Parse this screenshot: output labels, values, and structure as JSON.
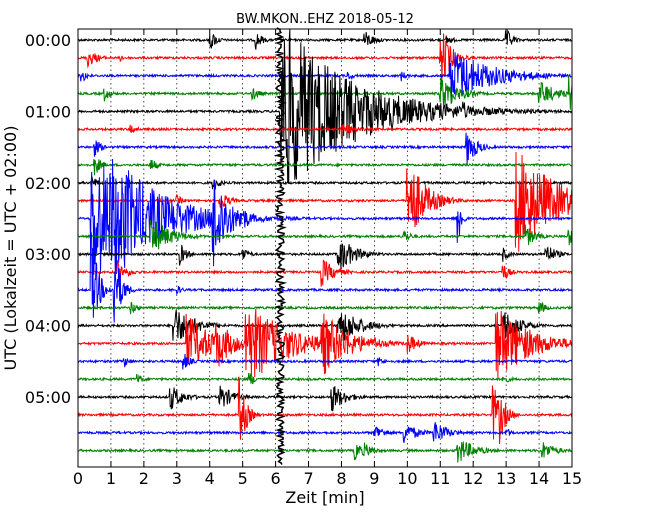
{
  "chart_data": {
    "type": "line",
    "title": "BW.MKON..EHZ 2018-05-12",
    "xlabel": "Zeit  [min]",
    "ylabel": "UTC (Lokalzeit = UTC + 02:00)",
    "xlim": [
      0,
      15
    ],
    "x_ticks": [
      "0",
      "1",
      "2",
      "3",
      "4",
      "5",
      "6",
      "7",
      "8",
      "9",
      "10",
      "11",
      "12",
      "13",
      "14",
      "15"
    ],
    "y_ticks": [
      "00:00",
      "01:00",
      "02:00",
      "03:00",
      "04:00",
      "05:00"
    ],
    "grid": "vertical-dotted",
    "line_interval_min": 15,
    "trace_colors": [
      "#000000",
      "#ff0000",
      "#0000ff",
      "#008000"
    ],
    "series": [
      {
        "start": "00:00",
        "color": "#000000",
        "events": [
          {
            "t": 4.0,
            "a": 12,
            "d": 0.2
          },
          {
            "t": 5.4,
            "a": 10,
            "d": 0.2
          },
          {
            "t": 8.7,
            "a": 10,
            "d": 0.3
          },
          {
            "t": 13.0,
            "a": 12,
            "d": 0.2
          },
          {
            "t": 11.2,
            "a": 6,
            "d": 0.2
          }
        ]
      },
      {
        "start": "00:15",
        "color": "#ff0000",
        "events": [
          {
            "t": 0.3,
            "a": 10,
            "d": 0.3
          },
          {
            "t": 11.0,
            "a": 35,
            "d": 0.3
          },
          {
            "t": 1.3,
            "a": 4,
            "d": 0.1
          }
        ]
      },
      {
        "start": "00:30",
        "color": "#0000ff",
        "events": [
          {
            "t": 11.3,
            "a": 30,
            "d": 1.2
          },
          {
            "t": 0.1,
            "a": 8,
            "d": 0.2
          },
          {
            "t": 9.8,
            "a": 6,
            "d": 0.2
          },
          {
            "t": 8.2,
            "a": 5,
            "d": 0.2
          }
        ]
      },
      {
        "start": "00:45",
        "color": "#008000",
        "events": [
          {
            "t": 11.0,
            "a": 20,
            "d": 0.5
          },
          {
            "t": 14.0,
            "a": 14,
            "d": 0.5
          },
          {
            "t": 14.9,
            "a": 20,
            "d": 0.3
          },
          {
            "t": 0.8,
            "a": 8,
            "d": 0.2
          },
          {
            "t": 5.3,
            "a": 8,
            "d": 0.2
          }
        ]
      },
      {
        "start": "01:00",
        "color": "#000000",
        "events": [
          {
            "t": 6.15,
            "a": 95,
            "d": 2.0
          },
          {
            "t": 11.7,
            "a": 10,
            "d": 0.3
          }
        ]
      },
      {
        "start": "01:15",
        "color": "#ff0000",
        "events": [
          {
            "t": 1.6,
            "a": 6,
            "d": 0.2
          },
          {
            "t": 8.0,
            "a": 8,
            "d": 0.4
          }
        ]
      },
      {
        "start": "01:30",
        "color": "#0000ff",
        "events": [
          {
            "t": 11.8,
            "a": 20,
            "d": 0.3
          },
          {
            "t": 0.5,
            "a": 10,
            "d": 0.2
          }
        ]
      },
      {
        "start": "01:45",
        "color": "#008000",
        "events": [
          {
            "t": 0.5,
            "a": 12,
            "d": 0.2
          },
          {
            "t": 2.2,
            "a": 8,
            "d": 0.2
          }
        ]
      },
      {
        "start": "02:00",
        "color": "#000000",
        "events": [
          {
            "t": 0.4,
            "a": 8,
            "d": 0.2
          },
          {
            "t": 4.1,
            "a": 10,
            "d": 0.2
          }
        ]
      },
      {
        "start": "02:15",
        "color": "#ff0000",
        "events": [
          {
            "t": 10.0,
            "a": 50,
            "d": 0.5
          },
          {
            "t": 13.3,
            "a": 55,
            "d": 1.2
          },
          {
            "t": 4.3,
            "a": 10,
            "d": 0.3
          },
          {
            "t": 3.0,
            "a": 6,
            "d": 0.2
          }
        ]
      },
      {
        "start": "02:30",
        "color": "#0000ff",
        "events": [
          {
            "t": 0.4,
            "a": 70,
            "d": 1.5
          },
          {
            "t": 1.0,
            "a": 70,
            "d": 1.5
          },
          {
            "t": 4.1,
            "a": 60,
            "d": 0.4
          },
          {
            "t": 4.9,
            "a": 18,
            "d": 0.3
          },
          {
            "t": 2.2,
            "a": 10,
            "d": 0.4
          },
          {
            "t": 11.5,
            "a": 50,
            "d": 0.1
          }
        ]
      },
      {
        "start": "02:45",
        "color": "#008000",
        "events": [
          {
            "t": 2.2,
            "a": 20,
            "d": 0.6
          },
          {
            "t": 9.9,
            "a": 8,
            "d": 0.2
          },
          {
            "t": 13.6,
            "a": 12,
            "d": 0.3
          },
          {
            "t": 14.9,
            "a": 10,
            "d": 0.3
          }
        ]
      },
      {
        "start": "03:00",
        "color": "#000000",
        "events": [
          {
            "t": 7.9,
            "a": 20,
            "d": 0.5
          },
          {
            "t": 3.1,
            "a": 12,
            "d": 0.2
          },
          {
            "t": 14.2,
            "a": 12,
            "d": 0.3
          },
          {
            "t": 12.9,
            "a": 8,
            "d": 0.2
          },
          {
            "t": 5.0,
            "a": 8,
            "d": 0.2
          }
        ]
      },
      {
        "start": "03:15",
        "color": "#ff0000",
        "events": [
          {
            "t": 1.2,
            "a": 12,
            "d": 0.3
          },
          {
            "t": 7.4,
            "a": 15,
            "d": 0.4
          },
          {
            "t": 12.9,
            "a": 10,
            "d": 0.2
          }
        ]
      },
      {
        "start": "03:30",
        "color": "#0000ff",
        "events": [
          {
            "t": 0.4,
            "a": 60,
            "d": 0.2
          },
          {
            "t": 1.1,
            "a": 45,
            "d": 0.2
          },
          {
            "t": 3.0,
            "a": 5,
            "d": 0.2
          }
        ]
      },
      {
        "start": "03:45",
        "color": "#008000",
        "events": [
          {
            "t": 1.6,
            "a": 8,
            "d": 0.2
          },
          {
            "t": 14.0,
            "a": 8,
            "d": 0.2
          }
        ]
      },
      {
        "start": "04:00",
        "color": "#000000",
        "events": [
          {
            "t": 2.9,
            "a": 22,
            "d": 0.6
          },
          {
            "t": 7.9,
            "a": 22,
            "d": 0.6
          },
          {
            "t": 12.9,
            "a": 18,
            "d": 0.5
          }
        ]
      },
      {
        "start": "04:15",
        "color": "#ff0000",
        "events": [
          {
            "t": 3.3,
            "a": 30,
            "d": 0.8
          },
          {
            "t": 4.2,
            "a": 28,
            "d": 0.5
          },
          {
            "t": 5.1,
            "a": 45,
            "d": 1.2
          },
          {
            "t": 7.4,
            "a": 35,
            "d": 0.8
          },
          {
            "t": 12.7,
            "a": 40,
            "d": 1.0
          },
          {
            "t": 10.0,
            "a": 12,
            "d": 0.3
          },
          {
            "t": 9.0,
            "a": 8,
            "d": 0.3
          }
        ]
      },
      {
        "start": "04:30",
        "color": "#0000ff",
        "events": [
          {
            "t": 1.4,
            "a": 6,
            "d": 0.2
          },
          {
            "t": 3.2,
            "a": 10,
            "d": 0.2
          },
          {
            "t": 9.1,
            "a": 6,
            "d": 0.2
          }
        ]
      },
      {
        "start": "04:45",
        "color": "#008000",
        "events": [
          {
            "t": 1.8,
            "a": 6,
            "d": 0.2
          },
          {
            "t": 5.2,
            "a": 8,
            "d": 0.2
          },
          {
            "t": 12.9,
            "a": 6,
            "d": 0.2
          }
        ]
      },
      {
        "start": "05:00",
        "color": "#000000",
        "events": [
          {
            "t": 2.8,
            "a": 14,
            "d": 0.4
          },
          {
            "t": 4.3,
            "a": 14,
            "d": 0.4
          },
          {
            "t": 7.7,
            "a": 16,
            "d": 0.4
          }
        ]
      },
      {
        "start": "05:15",
        "color": "#ff0000",
        "events": [
          {
            "t": 4.9,
            "a": 40,
            "d": 0.2
          },
          {
            "t": 12.8,
            "a": 30,
            "d": 0.2
          },
          {
            "t": 12.6,
            "a": 35,
            "d": 0.2
          }
        ]
      },
      {
        "start": "05:30",
        "color": "#0000ff",
        "events": [
          {
            "t": 9.0,
            "a": 10,
            "d": 0.3
          },
          {
            "t": 9.9,
            "a": 12,
            "d": 0.4
          },
          {
            "t": 10.8,
            "a": 14,
            "d": 0.4
          },
          {
            "t": 13.0,
            "a": 5,
            "d": 0.2
          }
        ]
      },
      {
        "start": "05:45",
        "color": "#008000",
        "events": [
          {
            "t": 8.4,
            "a": 10,
            "d": 0.3
          },
          {
            "t": 11.5,
            "a": 15,
            "d": 0.5
          },
          {
            "t": 14.1,
            "a": 10,
            "d": 0.4
          },
          {
            "t": 8.7,
            "a": 8,
            "d": 0.3
          }
        ]
      }
    ],
    "continuous_events": [
      {
        "t": 6.15,
        "from_min": 0,
        "to_min": 360,
        "a": 10,
        "color": "#000000",
        "note": "continuous-noise-band"
      }
    ]
  }
}
